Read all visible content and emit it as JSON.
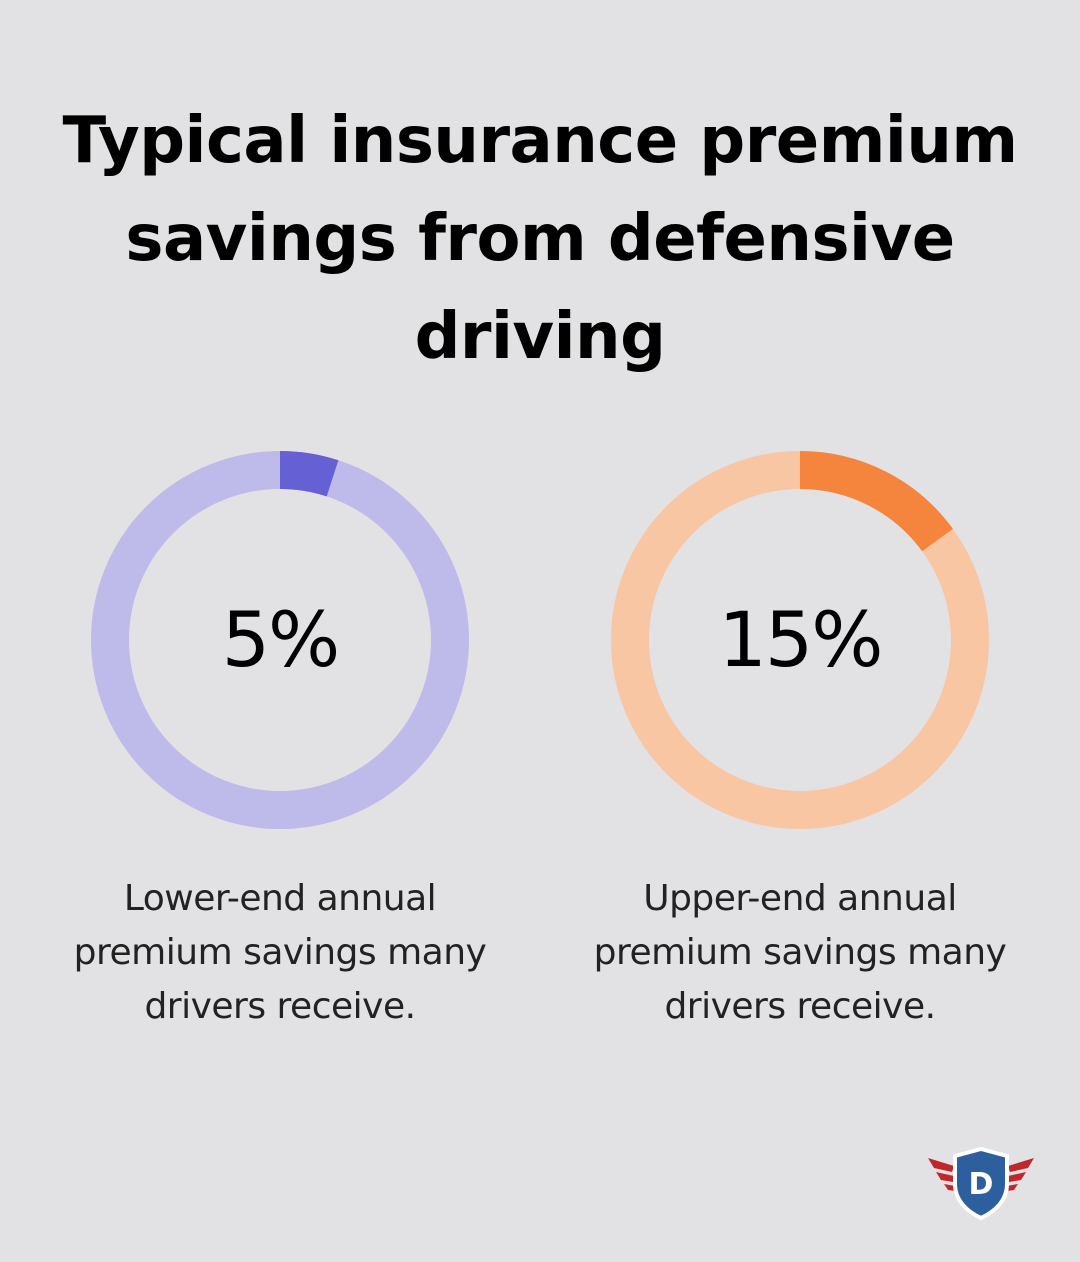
{
  "title": "Typical insurance premium savings from defensive driving",
  "chart_data": [
    {
      "type": "pie",
      "style": "donut",
      "value": 5,
      "label": "5%",
      "caption": "Lower-end annual premium savings many drivers receive.",
      "colors": {
        "filled": "#6560d4",
        "track": "#bebaea"
      }
    },
    {
      "type": "pie",
      "style": "donut",
      "value": 15,
      "label": "15%",
      "caption": "Upper-end annual premium savings many drivers receive.",
      "colors": {
        "filled": "#f5843c",
        "track": "#f8c6a3"
      }
    }
  ],
  "logo": {
    "icon": "shield-wings-icon",
    "letter": "D",
    "colors": {
      "shield": "#2d5f9e",
      "shield_border": "#ffffff",
      "wings": "#c0272d"
    }
  },
  "colors": {
    "background": "#e2e1e4"
  }
}
